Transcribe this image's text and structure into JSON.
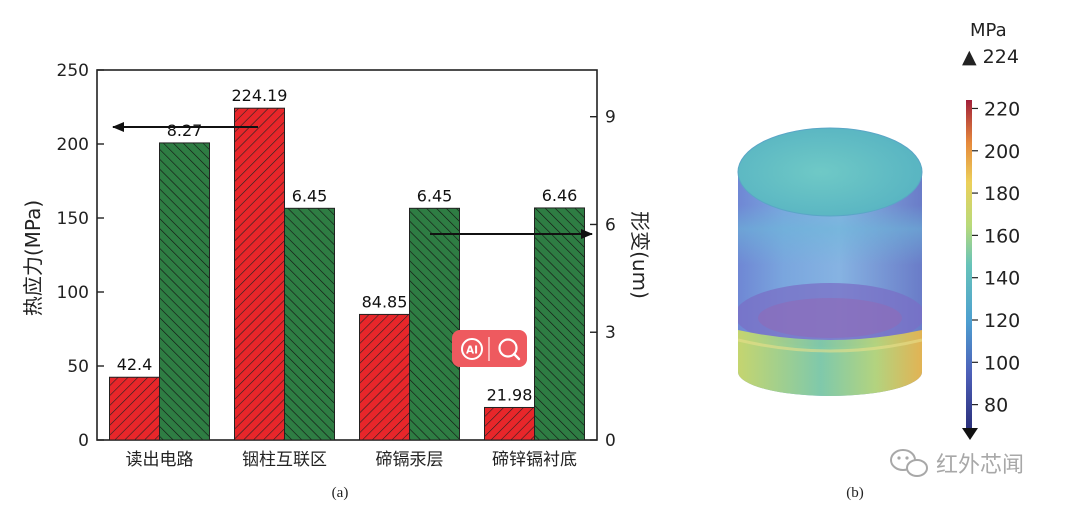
{
  "chart_data": [
    {
      "type": "bar",
      "panel_label": "(a)",
      "categories": [
        "读出电路",
        "铟柱互联区",
        "碲镉汞层",
        "碲锌镉衬底"
      ],
      "series": [
        {
          "values": [
            42.4,
            224.19,
            84.85,
            21.98
          ],
          "labels": [
            "42.4",
            "224.19",
            "84.85",
            "21.98"
          ],
          "color": "#e8262a",
          "axis": "left"
        },
        {
          "values": [
            8.27,
            6.45,
            6.45,
            6.46
          ],
          "labels": [
            "8.27",
            "6.45",
            "6.45",
            "6.46"
          ],
          "color": "#2e7d43",
          "axis": "right"
        }
      ],
      "ylabel": "热应力(MPa)",
      "ylim": [
        0,
        250
      ],
      "yticks": [
        0,
        50,
        100,
        150,
        200,
        250
      ],
      "y2label": "形变(um)",
      "y2lim": [
        0,
        10.3
      ],
      "y2ticks": [
        0,
        3,
        6,
        9
      ],
      "grid": false
    },
    {
      "type": "heatmap",
      "panel_label": "(b)",
      "colorbar": {
        "unit": "MPa",
        "max_label": "▲ 224",
        "ticks": [
          220,
          200,
          180,
          160,
          140,
          120,
          100,
          80
        ],
        "range": [
          68,
          224
        ]
      }
    }
  ],
  "watermark": {
    "text": "红外芯闻"
  },
  "overlay_badge": {
    "left_glyph": "AI",
    "right_icon": "search-icon"
  },
  "colors": {
    "red": "#e8262a",
    "green": "#2e7d43",
    "axis": "#222222"
  }
}
